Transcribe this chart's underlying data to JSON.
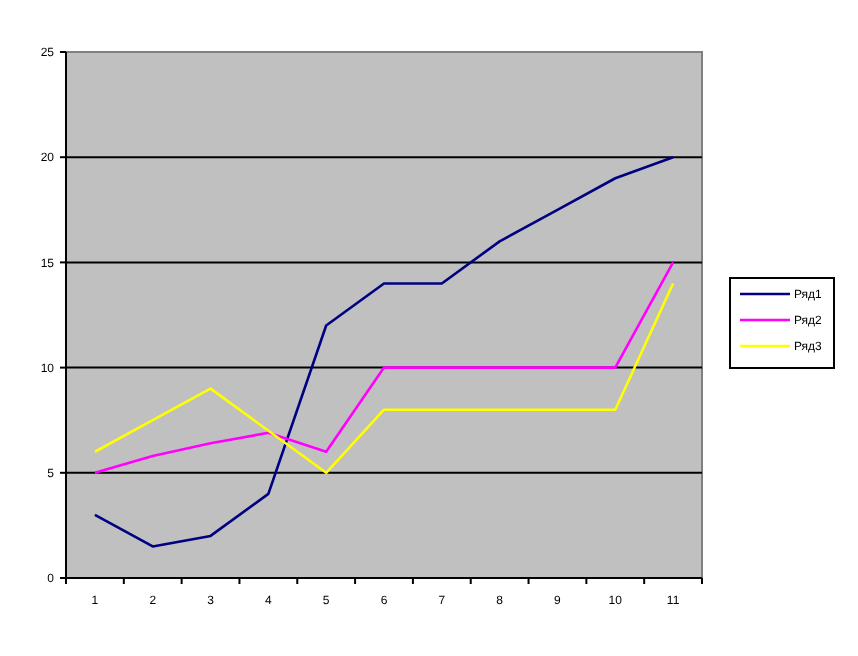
{
  "chart_data": {
    "type": "line",
    "categories": [
      "1",
      "2",
      "3",
      "4",
      "5",
      "6",
      "7",
      "8",
      "9",
      "10",
      "11"
    ],
    "series": [
      {
        "name": "Ряд1",
        "color": "#000080",
        "values": [
          3,
          1.5,
          2,
          4,
          12,
          14,
          14,
          16,
          17.5,
          19,
          20
        ]
      },
      {
        "name": "Ряд2",
        "color": "#ff00ff",
        "values": [
          5,
          5.8,
          6.4,
          6.9,
          6,
          10,
          10,
          10,
          10,
          10,
          15
        ]
      },
      {
        "name": "Ряд3",
        "color": "#ffff00",
        "values": [
          6,
          7.5,
          9,
          7,
          5,
          8,
          8,
          8,
          8,
          8,
          14
        ]
      }
    ],
    "ylim": [
      0,
      25
    ],
    "yticks": [
      0,
      5,
      10,
      15,
      20,
      25
    ],
    "grid": "y",
    "legend": "right",
    "marker": "none",
    "line_style": "solid"
  }
}
